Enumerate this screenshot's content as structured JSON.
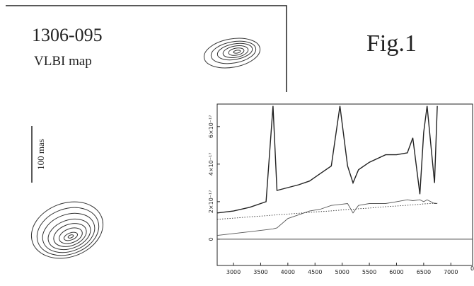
{
  "panel": {
    "object": "1306-095",
    "map_label": "VLBI map",
    "scale_label": "100 mas"
  },
  "figure_label": "Fig.1",
  "edge_mark": "0",
  "chart_data": {
    "type": "line",
    "x": [
      2700,
      3000,
      3300,
      3600,
      3727,
      3800,
      4000,
      4200,
      4400,
      4600,
      4800,
      4959,
      5100,
      5200,
      5300,
      5500,
      5800,
      6000,
      6200,
      6300,
      6430,
      6500,
      6563,
      6700,
      6750
    ],
    "series": [
      {
        "color": "#222222",
        "style": "solid",
        "values": [
          1.4e-17,
          1.5e-17,
          1.7e-17,
          2e-17,
          7.1e-17,
          2.6e-17,
          2.75e-17,
          2.9e-17,
          3.1e-17,
          3.5e-17,
          3.9e-17,
          7.1e-17,
          3.9e-17,
          3e-17,
          3.7e-17,
          4.1e-17,
          4.5e-17,
          4.5e-17,
          4.6e-17,
          5.4e-17,
          2.4e-17,
          5.7e-17,
          7.1e-17,
          3e-17,
          7.1e-17
        ]
      },
      {
        "color": "#555555",
        "style": "solid",
        "values": [
          2e-18,
          3e-18,
          4e-18,
          5e-18,
          5.5e-18,
          6e-18,
          1.1e-17,
          1.3e-17,
          1.5e-17,
          1.6e-17,
          1.8e-17,
          1.85e-17,
          1.9e-17,
          1.4e-17,
          1.8e-17,
          1.9e-17,
          1.9e-17,
          2e-17,
          2.1e-17,
          2.05e-17,
          2.1e-17,
          2e-17,
          2.1e-17,
          1.9e-17,
          1.9e-17
        ]
      },
      {
        "color": "#333333",
        "style": "dotted",
        "values": [
          1.06e-17,
          1.12e-17,
          1.19e-17,
          1.25e-17,
          1.28e-17,
          1.3e-17,
          1.34e-17,
          1.38e-17,
          1.43e-17,
          1.47e-17,
          1.51e-17,
          1.55e-17,
          1.58e-17,
          1.6e-17,
          1.62e-17,
          1.66e-17,
          1.73e-17,
          1.77e-17,
          1.81e-17,
          1.83e-17,
          1.86e-17,
          1.88e-17,
          1.89e-17,
          1.92e-17,
          1.93e-17
        ]
      }
    ],
    "xlim": [
      2700,
      7400
    ],
    "xticks": [
      3000,
      3500,
      4000,
      4500,
      5000,
      5500,
      6000,
      6500,
      7000
    ],
    "ylim": [
      -1.4e-17,
      7.2e-17
    ],
    "yticks": [
      0,
      {
        "value": 2e-17,
        "label": "2×10⁻¹⁷"
      },
      {
        "value": 4e-17,
        "label": "4×10⁻¹⁷"
      },
      {
        "value": 6e-17,
        "label": "6×10⁻¹⁷"
      }
    ]
  }
}
